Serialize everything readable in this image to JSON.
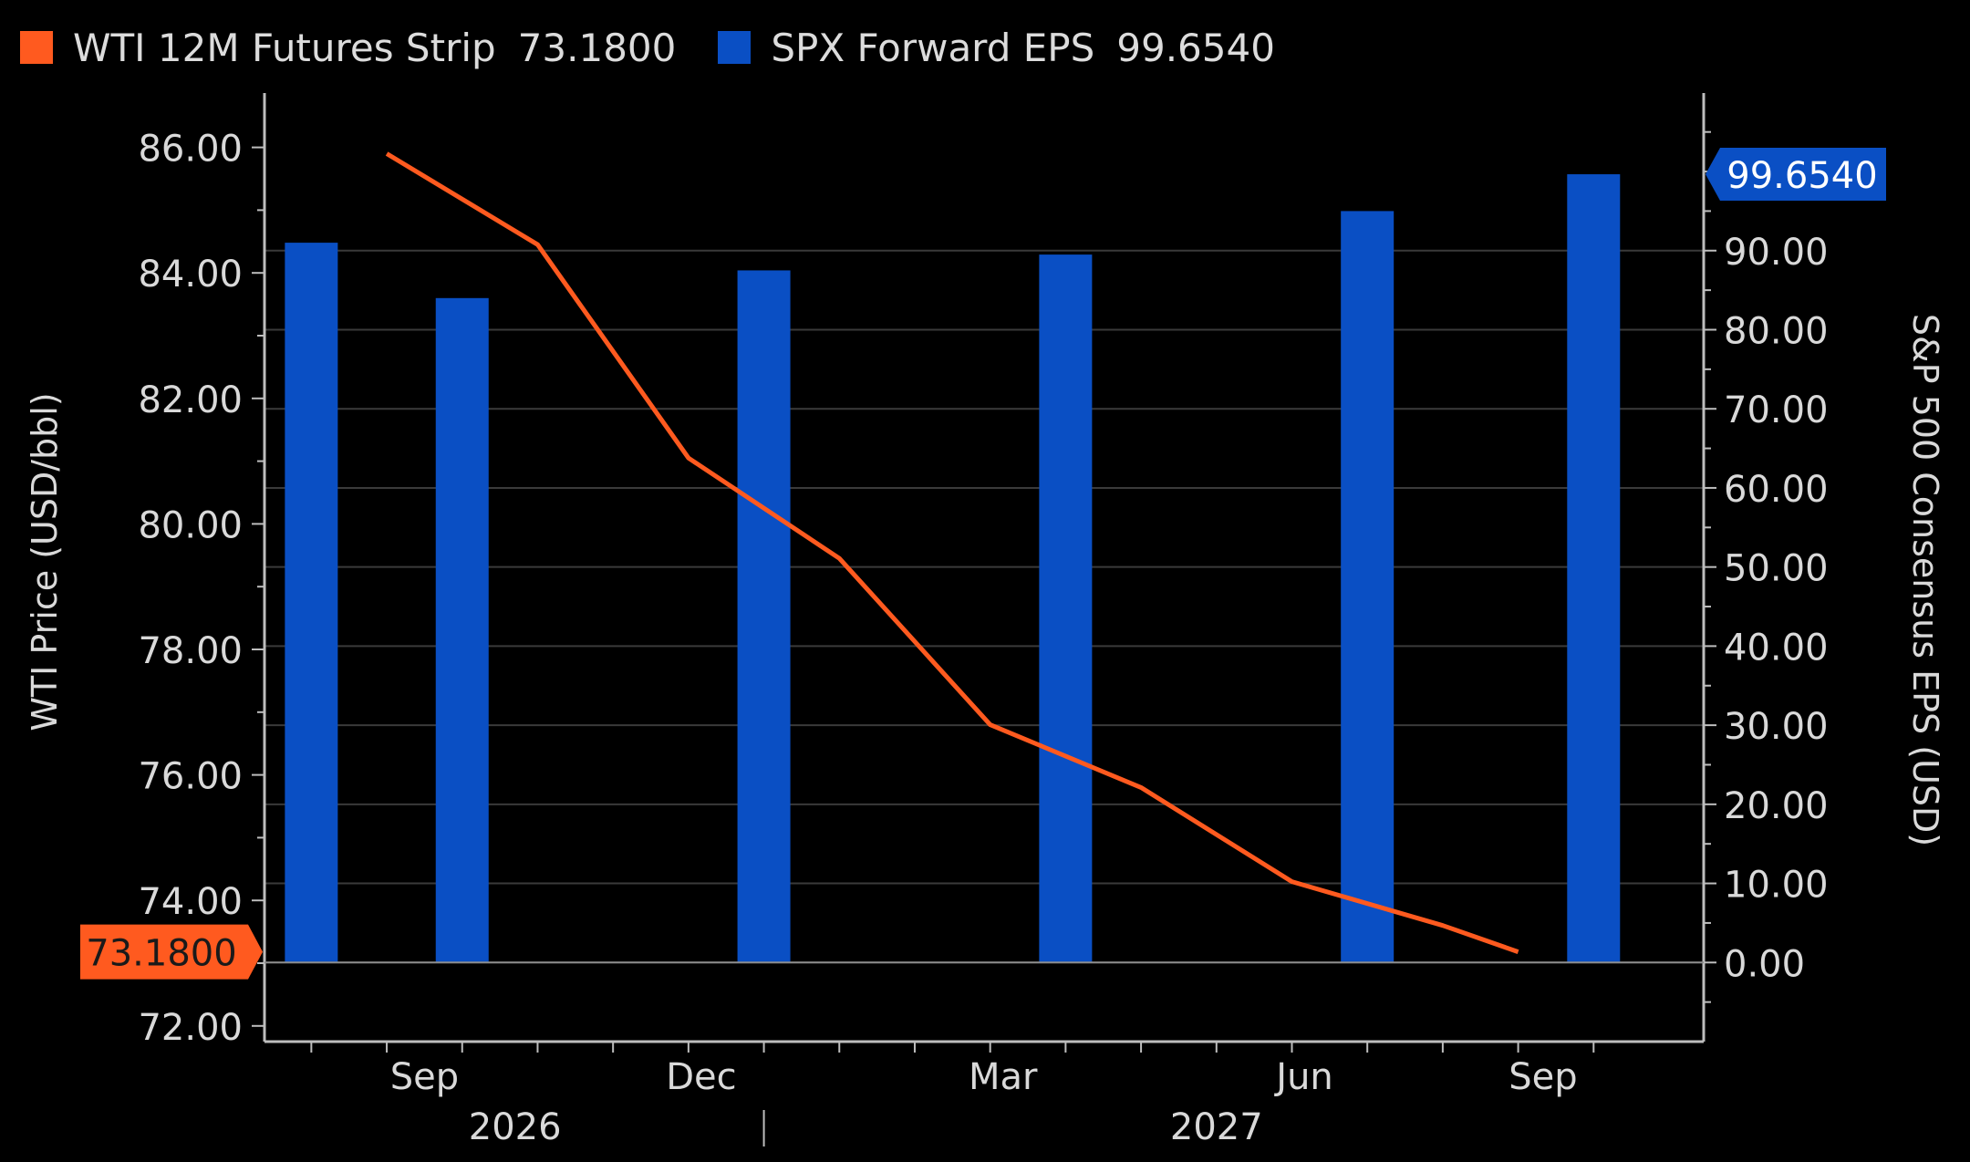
{
  "colors": {
    "background": "#000000",
    "gridline": "#3a3a3a",
    "axis": "#bdbdbd",
    "text": "#d9d9d9",
    "wti": "#ff5a1f",
    "spx": "#0a4fc4"
  },
  "legend": [
    {
      "label": "WTI 12M Futures Strip",
      "value": "73.1800",
      "color": "#ff5a1f"
    },
    {
      "label": "SPX Forward EPS",
      "value": "99.6540",
      "color": "#0a4fc4"
    }
  ],
  "chart_data": {
    "type": "bar+line",
    "title": "",
    "left_axis": {
      "label": "WTI Price (USD/bbl)",
      "range": [
        71.75,
        86.75
      ],
      "ticks": [
        "72.00",
        "74.00",
        "76.00",
        "78.00",
        "80.00",
        "82.00",
        "84.00",
        "86.00"
      ],
      "tick_values": [
        72,
        74,
        76,
        78,
        80,
        82,
        84,
        86
      ],
      "last_value_label": "73.1800",
      "last_value": 73.18
    },
    "right_axis": {
      "label": "S&P 500 Consensus EPS (USD)",
      "range": [
        -10,
        109
      ],
      "ticks": [
        "0.00",
        "10.00",
        "20.00",
        "30.00",
        "40.00",
        "50.00",
        "60.00",
        "70.00",
        "80.00",
        "90.00"
      ],
      "tick_values": [
        0,
        10,
        20,
        30,
        40,
        50,
        60,
        70,
        80,
        90
      ],
      "last_value_label": "99.6540",
      "last_value": 99.654
    },
    "x_axis": {
      "range": [
        0,
        18.5
      ],
      "month_labels": [
        {
          "label": "Sep",
          "x": 2
        },
        {
          "label": "Dec",
          "x": 5.67
        },
        {
          "label": "Mar",
          "x": 9.67
        },
        {
          "label": "Jun",
          "x": 13.67
        },
        {
          "label": "Sep",
          "x": 16.83
        }
      ],
      "year_labels": [
        {
          "label": "2026",
          "x": 3.2
        },
        {
          "label": "2027",
          "x": 12.5
        }
      ],
      "year_separator_x": 6.5
    },
    "series": [
      {
        "name": "SPX Forward EPS",
        "type": "bar",
        "axis": "right",
        "x": [
          0.5,
          2.5,
          6.5,
          10.5,
          14.5,
          17.5
        ],
        "values": [
          91.0,
          84.0,
          87.5,
          89.5,
          95.0,
          99.654
        ]
      },
      {
        "name": "WTI 12M Futures Strip",
        "type": "line",
        "axis": "left",
        "x": [
          1.5,
          3.5,
          5.5,
          7.5,
          9.5,
          11.5,
          13.5,
          15.5,
          16.5
        ],
        "values": [
          85.9,
          84.45,
          81.05,
          79.45,
          76.8,
          75.8,
          74.3,
          73.6,
          73.18
        ]
      }
    ]
  }
}
